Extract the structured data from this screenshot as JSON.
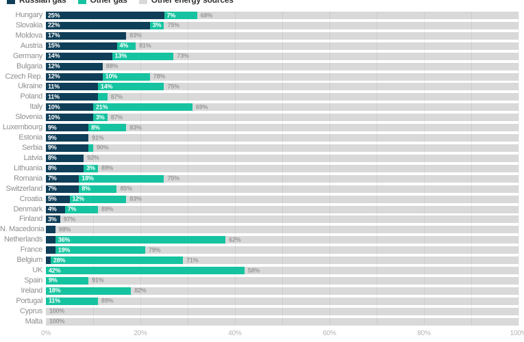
{
  "legend": {
    "items": [
      {
        "label": "Russian gas",
        "color": "#0f3e58"
      },
      {
        "label": "Other gas",
        "color": "#16c3a0"
      },
      {
        "label": "Other energy sources",
        "color": "#d9d9d9"
      }
    ]
  },
  "colors": {
    "russian_gas": "#0f3e58",
    "other_gas": "#16c3a0",
    "other_energy": "#d9d9d9",
    "gridline": "rgba(0,0,0,0.06)"
  },
  "axis": {
    "ticks": [
      {
        "label": "0%",
        "percent": 0
      },
      {
        "label": "20%",
        "percent": 20
      },
      {
        "label": "40%",
        "percent": 40
      },
      {
        "label": "60%",
        "percent": 60
      },
      {
        "label": "80%",
        "percent": 80
      },
      {
        "label": "100%",
        "percent": 100
      }
    ],
    "gridline_percents": [
      10,
      20,
      30,
      40,
      50,
      60,
      70,
      80,
      90,
      100
    ]
  },
  "chart_data": {
    "type": "bar",
    "orientation": "horizontal",
    "stacked": true,
    "xlim": [
      0,
      100
    ],
    "series_names": [
      "Russian gas",
      "Other gas",
      "Other energy sources"
    ],
    "rows": [
      {
        "country": "Hungary",
        "russian_gas": 25,
        "other_gas": 7,
        "other_energy": 68,
        "labels": [
          "25%",
          "7%",
          "68%"
        ]
      },
      {
        "country": "Slovakia",
        "russian_gas": 22,
        "other_gas": 3,
        "other_energy": 75,
        "labels": [
          "22%",
          "3%",
          "75%"
        ]
      },
      {
        "country": "Moldova",
        "russian_gas": 17,
        "other_gas": 0,
        "other_energy": 83,
        "labels": [
          "17%",
          "",
          "83%"
        ]
      },
      {
        "country": "Austria",
        "russian_gas": 15,
        "other_gas": 4,
        "other_energy": 81,
        "labels": [
          "15%",
          "4%",
          "81%"
        ]
      },
      {
        "country": "Germany",
        "russian_gas": 14,
        "other_gas": 13,
        "other_energy": 73,
        "labels": [
          "14%",
          "13%",
          "73%"
        ]
      },
      {
        "country": "Bulgaria",
        "russian_gas": 12,
        "other_gas": 0,
        "other_energy": 88,
        "labels": [
          "12%",
          "",
          "88%"
        ]
      },
      {
        "country": "Czech Rep.",
        "russian_gas": 12,
        "other_gas": 10,
        "other_energy": 78,
        "labels": [
          "12%",
          "10%",
          "78%"
        ]
      },
      {
        "country": "Ukraine",
        "russian_gas": 11,
        "other_gas": 14,
        "other_energy": 75,
        "labels": [
          "11%",
          "14%",
          "75%"
        ]
      },
      {
        "country": "Poland",
        "russian_gas": 11,
        "other_gas": 2,
        "other_energy": 87,
        "labels": [
          "11%",
          "",
          "87%"
        ]
      },
      {
        "country": "Italy",
        "russian_gas": 10,
        "other_gas": 21,
        "other_energy": 69,
        "labels": [
          "10%",
          "21%",
          "69%"
        ]
      },
      {
        "country": "Slovenia",
        "russian_gas": 10,
        "other_gas": 3,
        "other_energy": 87,
        "labels": [
          "10%",
          "3%",
          "87%"
        ]
      },
      {
        "country": "Luxembourg",
        "russian_gas": 9,
        "other_gas": 8,
        "other_energy": 83,
        "labels": [
          "9%",
          "8%",
          "83%"
        ]
      },
      {
        "country": "Estonia",
        "russian_gas": 9,
        "other_gas": 0,
        "other_energy": 91,
        "labels": [
          "9%",
          "",
          "91%"
        ]
      },
      {
        "country": "Serbia",
        "russian_gas": 9,
        "other_gas": 1,
        "other_energy": 90,
        "labels": [
          "9%",
          "",
          "90%"
        ]
      },
      {
        "country": "Latvia",
        "russian_gas": 8,
        "other_gas": 0,
        "other_energy": 92,
        "labels": [
          "8%",
          "",
          "92%"
        ]
      },
      {
        "country": "Lithuania",
        "russian_gas": 8,
        "other_gas": 3,
        "other_energy": 89,
        "labels": [
          "8%",
          "3%",
          "89%"
        ]
      },
      {
        "country": "Romania",
        "russian_gas": 7,
        "other_gas": 18,
        "other_energy": 75,
        "labels": [
          "7%",
          "18%",
          "75%"
        ]
      },
      {
        "country": "Switzerland",
        "russian_gas": 7,
        "other_gas": 8,
        "other_energy": 85,
        "labels": [
          "7%",
          "8%",
          "85%"
        ]
      },
      {
        "country": "Croatia",
        "russian_gas": 5,
        "other_gas": 12,
        "other_energy": 83,
        "labels": [
          "5%",
          "12%",
          "83%"
        ]
      },
      {
        "country": "Denmark",
        "russian_gas": 4,
        "other_gas": 7,
        "other_energy": 89,
        "labels": [
          "4%",
          "7%",
          "89%"
        ]
      },
      {
        "country": "Finland",
        "russian_gas": 3,
        "other_gas": 0,
        "other_energy": 97,
        "labels": [
          "3%",
          "",
          "97%"
        ]
      },
      {
        "country": "N. Macedonia",
        "russian_gas": 2,
        "other_gas": 0,
        "other_energy": 98,
        "labels": [
          "",
          "",
          "98%"
        ]
      },
      {
        "country": "Netherlands",
        "russian_gas": 2,
        "other_gas": 36,
        "other_energy": 62,
        "labels": [
          "",
          "36%",
          "62%"
        ]
      },
      {
        "country": "France",
        "russian_gas": 2,
        "other_gas": 19,
        "other_energy": 79,
        "labels": [
          "",
          "19%",
          "79%"
        ]
      },
      {
        "country": "Belgium",
        "russian_gas": 1,
        "other_gas": 28,
        "other_energy": 71,
        "labels": [
          "",
          "28%",
          "71%"
        ]
      },
      {
        "country": "UK",
        "russian_gas": 0,
        "other_gas": 42,
        "other_energy": 58,
        "labels": [
          "",
          "42%",
          "58%"
        ]
      },
      {
        "country": "Spain",
        "russian_gas": 0,
        "other_gas": 9,
        "other_energy": 91,
        "labels": [
          "",
          "9%",
          "91%"
        ]
      },
      {
        "country": "Ireland",
        "russian_gas": 0,
        "other_gas": 18,
        "other_energy": 82,
        "labels": [
          "",
          "18%",
          "82%"
        ]
      },
      {
        "country": "Portugal",
        "russian_gas": 0,
        "other_gas": 11,
        "other_energy": 89,
        "labels": [
          "",
          "11%",
          "89%"
        ]
      },
      {
        "country": "Cyprus",
        "russian_gas": 0,
        "other_gas": 0,
        "other_energy": 100,
        "labels": [
          "",
          "",
          "100%"
        ]
      },
      {
        "country": "Malta",
        "russian_gas": 0,
        "other_gas": 0,
        "other_energy": 100,
        "labels": [
          "",
          "",
          "100%"
        ]
      }
    ]
  }
}
